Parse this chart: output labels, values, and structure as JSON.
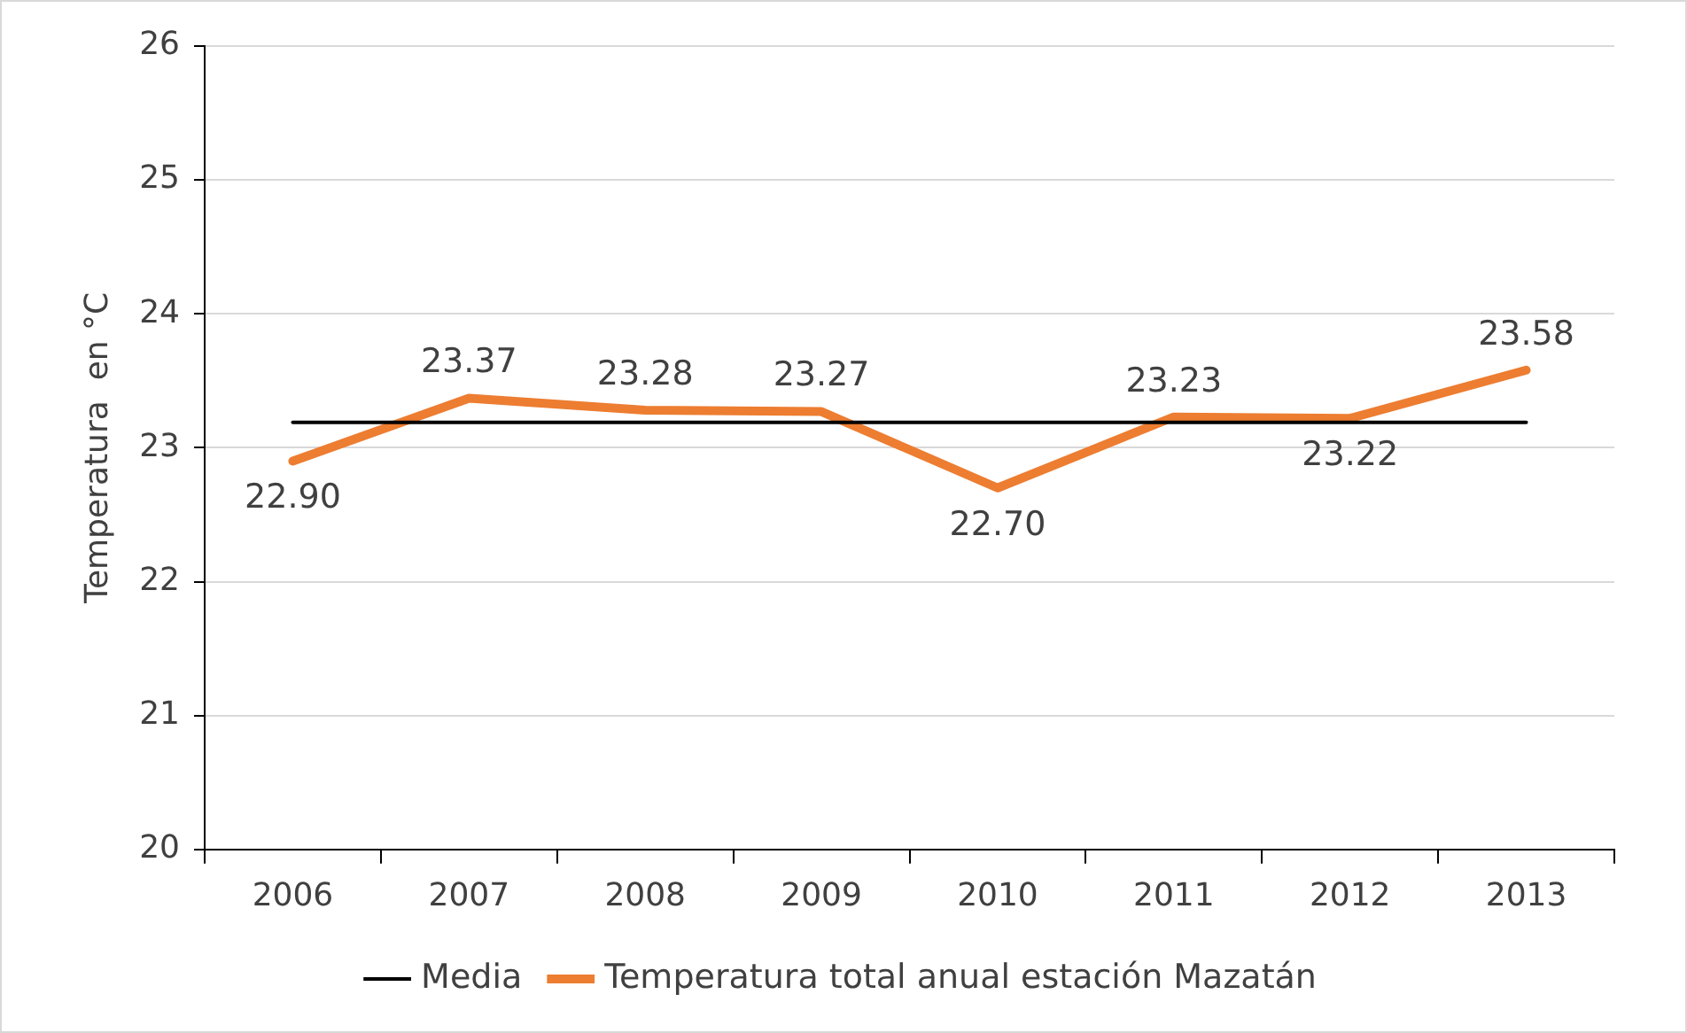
{
  "chart_data": {
    "type": "line",
    "ylabel": "Temperatura  en °C",
    "categories": [
      "2006",
      "2007",
      "2008",
      "2009",
      "2010",
      "2011",
      "2012",
      "2013"
    ],
    "series": [
      {
        "name": "Media",
        "color": "#000000",
        "values": [
          23.19,
          23.19,
          23.19,
          23.19,
          23.19,
          23.19,
          23.19,
          23.19
        ]
      },
      {
        "name": "Temperatura total anual estación Mazatán",
        "color": "#ed7d31",
        "values": [
          22.9,
          23.37,
          23.28,
          23.27,
          22.7,
          23.23,
          23.22,
          23.58
        ],
        "value_labels": [
          "22.90",
          "23.37",
          "23.28",
          "23.27",
          "22.70",
          "23.23",
          "23.22",
          "23.58"
        ]
      }
    ],
    "ylim": [
      20,
      26
    ],
    "yticks": [
      20,
      21,
      22,
      23,
      24,
      25,
      26
    ],
    "grid": "y",
    "legend": "bottom",
    "marker": "none",
    "line_style": "solid"
  }
}
